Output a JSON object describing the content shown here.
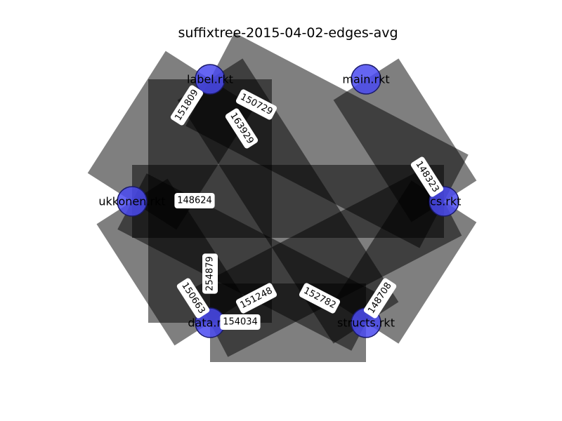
{
  "title": "suffixtree-2015-04-02-edges-avg",
  "colors": {
    "edge_band": "#000000",
    "node_fill": "#4a4af0",
    "node_stroke": "#1a1a6a",
    "label_box": "#ffffff"
  },
  "nodes": [
    {
      "id": "label",
      "name": "label.rkt"
    },
    {
      "id": "main",
      "name": "main.rkt"
    },
    {
      "id": "lcs",
      "name": "lcs.rkt"
    },
    {
      "id": "structs",
      "name": "structs.rkt"
    },
    {
      "id": "data",
      "name": "data.rkt"
    },
    {
      "id": "ukkonen",
      "name": "ukkonen.rkt"
    }
  ],
  "edges": [
    {
      "from": "label",
      "to": "ukkonen",
      "value": "151809"
    },
    {
      "from": "label",
      "to": "lcs",
      "value": "150729"
    },
    {
      "from": "label",
      "to": "structs",
      "value": "163929"
    },
    {
      "from": "main",
      "to": "lcs",
      "value": "148323"
    },
    {
      "from": "ukkonen",
      "to": "lcs",
      "value": "148624"
    },
    {
      "from": "ukkonen",
      "to": "structs",
      "value": "152782"
    },
    {
      "from": "data",
      "to": "label",
      "value": "254879"
    },
    {
      "from": "data",
      "to": "ukkonen",
      "value": "150663"
    },
    {
      "from": "data",
      "to": "lcs",
      "value": "151248"
    },
    {
      "from": "data",
      "to": "structs",
      "value": "154034"
    },
    {
      "from": "structs",
      "to": "lcs",
      "value": "148708"
    }
  ]
}
